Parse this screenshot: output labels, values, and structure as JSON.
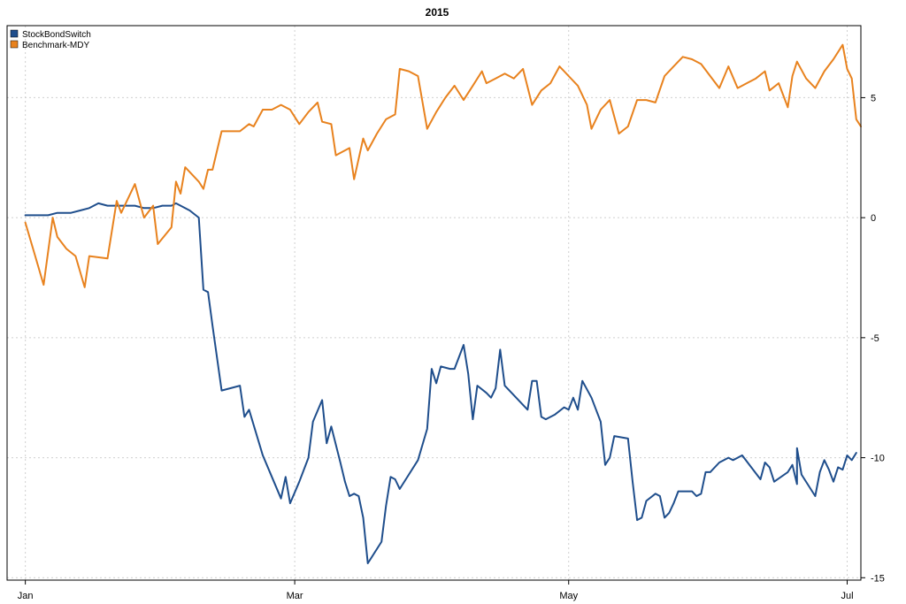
{
  "chart_data": {
    "type": "line",
    "title": "2015",
    "x_type": "date",
    "x_ticks": [
      {
        "label": "Jan",
        "date": "2015-01-02"
      },
      {
        "label": "Mar",
        "date": "2015-03-02"
      },
      {
        "label": "May",
        "date": "2015-05-01"
      },
      {
        "label": "Jul",
        "date": "2015-07-01"
      }
    ],
    "y_ticks": [
      -15,
      -10,
      -5,
      0,
      5
    ],
    "ylim": [
      -15.1,
      8.0
    ],
    "xlim": [
      "2014-12-29",
      "2015-07-04"
    ],
    "y_axis_side": "right",
    "grid": true,
    "legend_position": "top-left",
    "series": [
      {
        "name": "StockBondSwitch",
        "color": "#1f4e8c",
        "points": [
          [
            "2015-01-02",
            0.1
          ],
          [
            "2015-01-05",
            0.1
          ],
          [
            "2015-01-07",
            0.1
          ],
          [
            "2015-01-09",
            0.2
          ],
          [
            "2015-01-12",
            0.2
          ],
          [
            "2015-01-14",
            0.3
          ],
          [
            "2015-01-16",
            0.4
          ],
          [
            "2015-01-18",
            0.6
          ],
          [
            "2015-01-20",
            0.5
          ],
          [
            "2015-01-23",
            0.5
          ],
          [
            "2015-01-26",
            0.5
          ],
          [
            "2015-01-28",
            0.4
          ],
          [
            "2015-01-30",
            0.4
          ],
          [
            "2015-02-01",
            0.5
          ],
          [
            "2015-02-03",
            0.5
          ],
          [
            "2015-02-04",
            0.6
          ],
          [
            "2015-02-07",
            0.3
          ],
          [
            "2015-02-09",
            0.0
          ],
          [
            "2015-02-10",
            -3.0
          ],
          [
            "2015-02-11",
            -3.1
          ],
          [
            "2015-02-12",
            -4.5
          ],
          [
            "2015-02-14",
            -7.2
          ],
          [
            "2015-02-16",
            -7.1
          ],
          [
            "2015-02-18",
            -7.0
          ],
          [
            "2015-02-19",
            -8.3
          ],
          [
            "2015-02-20",
            -8.0
          ],
          [
            "2015-02-23",
            -9.9
          ],
          [
            "2015-02-25",
            -10.8
          ],
          [
            "2015-02-27",
            -11.7
          ],
          [
            "2015-02-28",
            -10.8
          ],
          [
            "2015-03-01",
            -11.9
          ],
          [
            "2015-03-03",
            -11.0
          ],
          [
            "2015-03-05",
            -10.0
          ],
          [
            "2015-03-06",
            -8.5
          ],
          [
            "2015-03-08",
            -7.6
          ],
          [
            "2015-03-09",
            -9.4
          ],
          [
            "2015-03-10",
            -8.7
          ],
          [
            "2015-03-12",
            -10.2
          ],
          [
            "2015-03-13",
            -11.0
          ],
          [
            "2015-03-14",
            -11.6
          ],
          [
            "2015-03-15",
            -11.5
          ],
          [
            "2015-03-16",
            -11.6
          ],
          [
            "2015-03-17",
            -12.5
          ],
          [
            "2015-03-18",
            -14.4
          ],
          [
            "2015-03-21",
            -13.5
          ],
          [
            "2015-03-22",
            -12.0
          ],
          [
            "2015-03-23",
            -10.8
          ],
          [
            "2015-03-24",
            -10.9
          ],
          [
            "2015-03-25",
            -11.3
          ],
          [
            "2015-03-27",
            -10.7
          ],
          [
            "2015-03-29",
            -10.1
          ],
          [
            "2015-03-31",
            -8.8
          ],
          [
            "2015-04-01",
            -6.3
          ],
          [
            "2015-04-02",
            -6.9
          ],
          [
            "2015-04-03",
            -6.2
          ],
          [
            "2015-04-05",
            -6.3
          ],
          [
            "2015-04-06",
            -6.3
          ],
          [
            "2015-04-08",
            -5.3
          ],
          [
            "2015-04-09",
            -6.5
          ],
          [
            "2015-04-10",
            -8.4
          ],
          [
            "2015-04-11",
            -7.0
          ],
          [
            "2015-04-13",
            -7.3
          ],
          [
            "2015-04-14",
            -7.5
          ],
          [
            "2015-04-15",
            -7.1
          ],
          [
            "2015-04-16",
            -5.5
          ],
          [
            "2015-04-17",
            -7.0
          ],
          [
            "2015-04-20",
            -7.6
          ],
          [
            "2015-04-22",
            -8.0
          ],
          [
            "2015-04-23",
            -6.8
          ],
          [
            "2015-04-24",
            -6.8
          ],
          [
            "2015-04-25",
            -8.3
          ],
          [
            "2015-04-26",
            -8.4
          ],
          [
            "2015-04-28",
            -8.2
          ],
          [
            "2015-04-30",
            -7.9
          ],
          [
            "2015-05-01",
            -8.0
          ],
          [
            "2015-05-02",
            -7.5
          ],
          [
            "2015-05-03",
            -8.0
          ],
          [
            "2015-05-04",
            -6.8
          ],
          [
            "2015-05-06",
            -7.5
          ],
          [
            "2015-05-07",
            -8.0
          ],
          [
            "2015-05-08",
            -8.5
          ],
          [
            "2015-05-09",
            -10.3
          ],
          [
            "2015-05-10",
            -10.0
          ],
          [
            "2015-05-11",
            -9.1
          ],
          [
            "2015-05-14",
            -9.2
          ],
          [
            "2015-05-15",
            -11.0
          ],
          [
            "2015-05-16",
            -12.6
          ],
          [
            "2015-05-17",
            -12.5
          ],
          [
            "2015-05-18",
            -11.8
          ],
          [
            "2015-05-20",
            -11.5
          ],
          [
            "2015-05-21",
            -11.6
          ],
          [
            "2015-05-22",
            -12.5
          ],
          [
            "2015-05-23",
            -12.3
          ],
          [
            "2015-05-24",
            -11.9
          ],
          [
            "2015-05-25",
            -11.4
          ],
          [
            "2015-05-28",
            -11.4
          ],
          [
            "2015-05-29",
            -11.6
          ],
          [
            "2015-05-30",
            -11.5
          ],
          [
            "2015-05-31",
            -10.6
          ],
          [
            "2015-06-01",
            -10.6
          ],
          [
            "2015-06-03",
            -10.2
          ],
          [
            "2015-06-05",
            -10.0
          ],
          [
            "2015-06-06",
            -10.1
          ],
          [
            "2015-06-07",
            -10.0
          ],
          [
            "2015-06-08",
            -9.9
          ],
          [
            "2015-06-12",
            -10.9
          ],
          [
            "2015-06-13",
            -10.2
          ],
          [
            "2015-06-14",
            -10.4
          ],
          [
            "2015-06-15",
            -11.0
          ],
          [
            "2015-06-18",
            -10.6
          ],
          [
            "2015-06-19",
            -10.3
          ],
          [
            "2015-06-20",
            -11.1
          ],
          [
            "2015-06-21",
            -10.7
          ],
          [
            "2015-06-24",
            -11.6
          ],
          [
            "2015-06-25",
            -10.6
          ],
          [
            "2015-06-26",
            -10.1
          ],
          [
            "2015-06-27",
            -10.5
          ],
          [
            "2015-06-28",
            -11.0
          ],
          [
            "2015-06-29",
            -10.4
          ],
          [
            "2015-06-30",
            -10.5
          ],
          [
            "2015-07-01",
            -9.9
          ],
          [
            "2015-07-02",
            -10.1
          ],
          [
            "2015-07-03",
            -9.8
          ],
          [
            "2015-06-20",
            -9.6
          ]
        ]
      },
      {
        "name": "Benchmark-MDY",
        "color": "#e8821e",
        "points": [
          [
            "2015-01-02",
            -0.2
          ],
          [
            "2015-01-04",
            -1.5
          ],
          [
            "2015-01-06",
            -2.8
          ],
          [
            "2015-01-08",
            0.0
          ],
          [
            "2015-01-09",
            -0.8
          ],
          [
            "2015-01-11",
            -1.3
          ],
          [
            "2015-01-13",
            -1.6
          ],
          [
            "2015-01-15",
            -2.9
          ],
          [
            "2015-01-16",
            -1.6
          ],
          [
            "2015-01-20",
            -1.7
          ],
          [
            "2015-01-22",
            0.7
          ],
          [
            "2015-01-23",
            0.2
          ],
          [
            "2015-01-26",
            1.4
          ],
          [
            "2015-01-28",
            0.0
          ],
          [
            "2015-01-30",
            0.5
          ],
          [
            "2015-01-31",
            -1.1
          ],
          [
            "2015-02-03",
            -0.4
          ],
          [
            "2015-02-04",
            1.5
          ],
          [
            "2015-02-05",
            1.0
          ],
          [
            "2015-02-06",
            2.1
          ],
          [
            "2015-02-09",
            1.5
          ],
          [
            "2015-02-10",
            1.2
          ],
          [
            "2015-02-11",
            2.0
          ],
          [
            "2015-02-12",
            2.0
          ],
          [
            "2015-02-14",
            3.6
          ],
          [
            "2015-02-16",
            3.6
          ],
          [
            "2015-02-18",
            3.6
          ],
          [
            "2015-02-20",
            3.9
          ],
          [
            "2015-02-21",
            3.8
          ],
          [
            "2015-02-23",
            4.5
          ],
          [
            "2015-02-25",
            4.5
          ],
          [
            "2015-02-27",
            4.7
          ],
          [
            "2015-03-01",
            4.5
          ],
          [
            "2015-03-03",
            3.9
          ],
          [
            "2015-03-05",
            4.4
          ],
          [
            "2015-03-07",
            4.8
          ],
          [
            "2015-03-08",
            4.0
          ],
          [
            "2015-03-10",
            3.9
          ],
          [
            "2015-03-11",
            2.6
          ],
          [
            "2015-03-12",
            2.7
          ],
          [
            "2015-03-14",
            2.9
          ],
          [
            "2015-03-15",
            1.6
          ],
          [
            "2015-03-17",
            3.3
          ],
          [
            "2015-03-18",
            2.8
          ],
          [
            "2015-03-20",
            3.5
          ],
          [
            "2015-03-22",
            4.1
          ],
          [
            "2015-03-24",
            4.3
          ],
          [
            "2015-03-25",
            6.2
          ],
          [
            "2015-03-27",
            6.1
          ],
          [
            "2015-03-29",
            5.9
          ],
          [
            "2015-03-31",
            3.7
          ],
          [
            "2015-04-02",
            4.4
          ],
          [
            "2015-04-04",
            5.0
          ],
          [
            "2015-04-06",
            5.5
          ],
          [
            "2015-04-08",
            4.9
          ],
          [
            "2015-04-10",
            5.5
          ],
          [
            "2015-04-12",
            6.1
          ],
          [
            "2015-04-13",
            5.6
          ],
          [
            "2015-04-15",
            5.8
          ],
          [
            "2015-04-17",
            6.0
          ],
          [
            "2015-04-19",
            5.8
          ],
          [
            "2015-04-21",
            6.2
          ],
          [
            "2015-04-23",
            4.7
          ],
          [
            "2015-04-25",
            5.3
          ],
          [
            "2015-04-27",
            5.6
          ],
          [
            "2015-04-29",
            6.3
          ],
          [
            "2015-05-01",
            5.9
          ],
          [
            "2015-05-03",
            5.5
          ],
          [
            "2015-05-05",
            4.7
          ],
          [
            "2015-05-06",
            3.7
          ],
          [
            "2015-05-08",
            4.5
          ],
          [
            "2015-05-10",
            4.9
          ],
          [
            "2015-05-12",
            3.5
          ],
          [
            "2015-05-14",
            3.8
          ],
          [
            "2015-05-16",
            4.9
          ],
          [
            "2015-05-18",
            4.9
          ],
          [
            "2015-05-20",
            4.8
          ],
          [
            "2015-05-22",
            5.9
          ],
          [
            "2015-05-24",
            6.3
          ],
          [
            "2015-05-26",
            6.7
          ],
          [
            "2015-05-28",
            6.6
          ],
          [
            "2015-05-30",
            6.4
          ],
          [
            "2015-06-01",
            5.9
          ],
          [
            "2015-06-03",
            5.4
          ],
          [
            "2015-06-05",
            6.3
          ],
          [
            "2015-06-07",
            5.4
          ],
          [
            "2015-06-09",
            5.6
          ],
          [
            "2015-06-11",
            5.8
          ],
          [
            "2015-06-13",
            6.1
          ],
          [
            "2015-06-14",
            5.3
          ],
          [
            "2015-06-16",
            5.6
          ],
          [
            "2015-06-18",
            4.6
          ],
          [
            "2015-06-19",
            5.9
          ],
          [
            "2015-06-20",
            6.5
          ],
          [
            "2015-06-22",
            5.8
          ],
          [
            "2015-06-24",
            5.4
          ],
          [
            "2015-06-26",
            6.1
          ],
          [
            "2015-06-28",
            6.6
          ],
          [
            "2015-06-30",
            7.2
          ],
          [
            "2015-07-01",
            6.2
          ],
          [
            "2015-07-02",
            5.8
          ],
          [
            "2015-07-03",
            4.1
          ],
          [
            "2015-07-04",
            3.8
          ]
        ]
      }
    ]
  }
}
